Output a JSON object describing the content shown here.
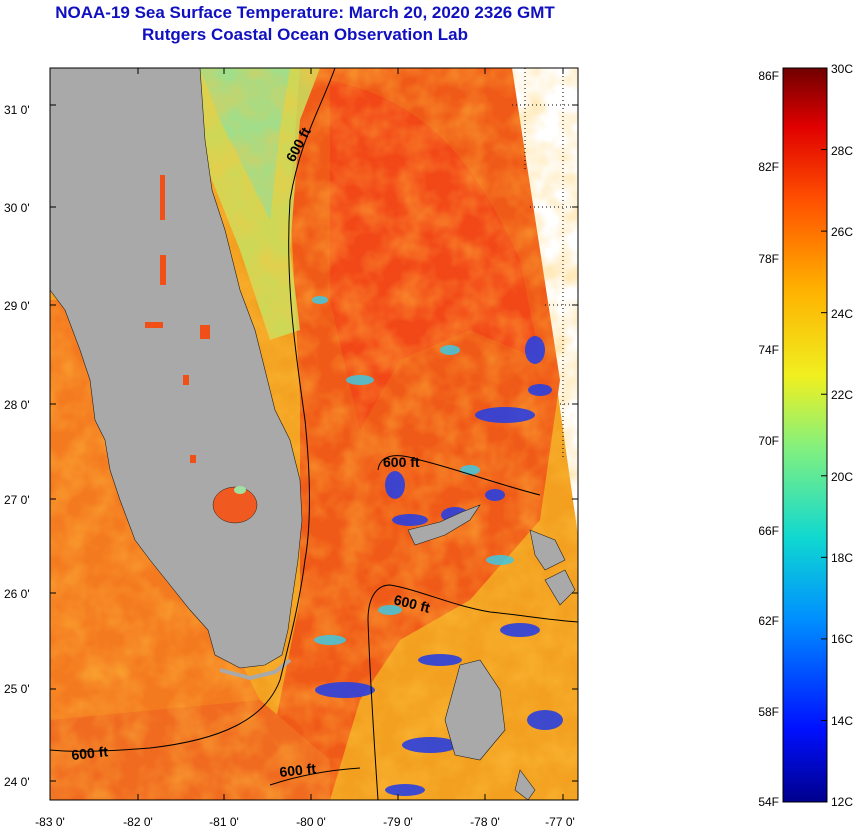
{
  "title": {
    "line1": "NOAA-19 Sea Surface Temperature:  March 20, 2020 2326 GMT",
    "line2": "Rutgers Coastal Ocean Observation Lab"
  },
  "map": {
    "lon_ticks": [
      "-83 0'",
      "-82 0'",
      "-81 0'",
      "-80 0'",
      "-79 0'",
      "-78 0'",
      "-77 0'"
    ],
    "lat_ticks": [
      "31 0'",
      "30 0'",
      "29 0'",
      "28 0'",
      "27 0'",
      "26 0'",
      "25 0'",
      "24 0'"
    ],
    "contour_labels": [
      "600 ft",
      "600 ft",
      "600 ft",
      "600 ft",
      "600 ft"
    ],
    "colors": {
      "land": "#a8a8a8",
      "warm_water": "#f06018",
      "mid_water": "#f8c020",
      "cool_water": "#60d8b0",
      "cold_water": "#2040e0"
    }
  },
  "colorbar": {
    "fahrenheit_labels": [
      "86F",
      "82F",
      "78F",
      "74F",
      "70F",
      "66F",
      "62F",
      "58F",
      "54F"
    ],
    "celsius_labels": [
      "30C",
      "28C",
      "26C",
      "24C",
      "22C",
      "20C",
      "18C",
      "16C",
      "14C",
      "12C"
    ],
    "range_f": [
      54,
      86
    ],
    "range_c": [
      12,
      30
    ]
  }
}
